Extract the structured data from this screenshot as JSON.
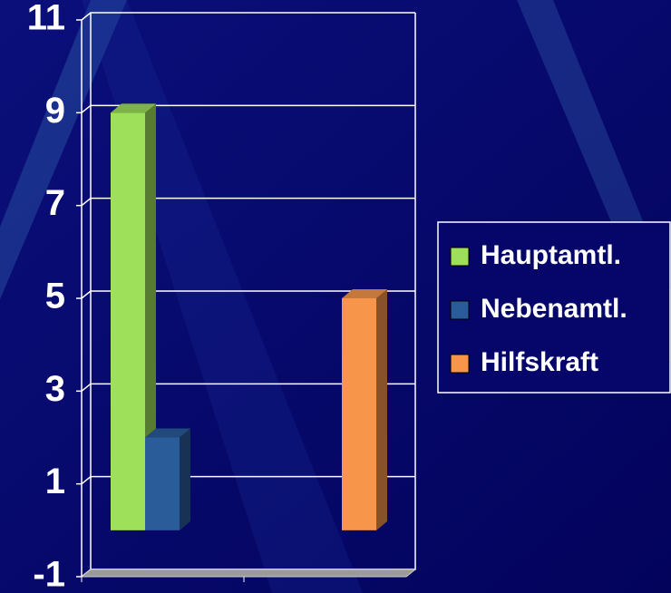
{
  "chart_data": {
    "type": "bar3d",
    "categories": [
      null,
      null
    ],
    "series": [
      {
        "name": "Hauptamtl.",
        "color": "#9ee05a",
        "values": [
          9,
          null
        ]
      },
      {
        "name": "Nebenamtl.",
        "color": "#2a5c9a",
        "values": [
          2,
          null
        ]
      },
      {
        "name": "Hilfskraft",
        "color": "#f7964a",
        "values": [
          null,
          5
        ]
      }
    ],
    "ylim": [
      -1,
      11
    ],
    "yticks": [
      -1,
      1,
      3,
      5,
      7,
      9,
      11
    ],
    "grid": true,
    "legend": "right"
  }
}
